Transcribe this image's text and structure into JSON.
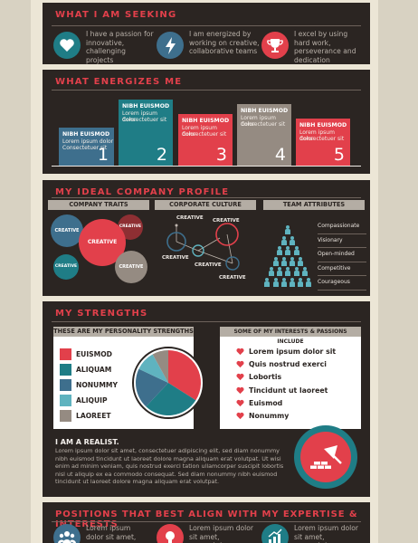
{
  "colors": {
    "red": "#e2404b",
    "teal": "#1f7d86",
    "blue": "#3e6f8d",
    "grey": "#958b82",
    "dark": "#2b2522"
  },
  "seeking": {
    "title": "WHAT I AM SEEKING",
    "items": [
      {
        "icon": "heart-icon",
        "text": "I have a passion for innovative, challenging projects"
      },
      {
        "icon": "lightning-icon",
        "text": "I am energized by working on creative, collaborative teams"
      },
      {
        "icon": "trophy-icon",
        "text": "I excel by using hard work, perseverance and dedication"
      }
    ]
  },
  "energizes": {
    "title": "WHAT ENERGIZES ME",
    "bars": [
      {
        "number": "1",
        "title": "NIBH EUISMOD",
        "line1": "Lorem ipsum dolor",
        "line2": "Consectetuer sit",
        "level": 0.4
      },
      {
        "number": "2",
        "title": "NIBH EUISMOD",
        "line1": "Lorem ipsum dolor",
        "line2": "Consectetuer sit",
        "level": 0.7
      },
      {
        "number": "3",
        "title": "NIBH EUISMOD",
        "line1": "Lorem ipsum dolor",
        "line2": "Consectetuer sit",
        "level": 0.55
      },
      {
        "number": "4",
        "title": "NIBH EUISMOD",
        "line1": "Lorem ipsum dolor",
        "line2": "Consectetuer sit",
        "level": 0.65
      },
      {
        "number": "5",
        "title": "NIBH EUISMOD",
        "line1": "Lorem ipsum dolor",
        "line2": "Consectetuer sit",
        "level": 0.5
      }
    ]
  },
  "company": {
    "title": "MY IDEAL COMPANY PROFILE",
    "traits_label": "COMPANY TRAITS",
    "culture_label": "CORPORATE CULTURE",
    "team_label": "TEAM ATTRIBUTES",
    "trait_word": "CREATIVE",
    "attributes": [
      "Compassionate",
      "Visionary",
      "Open-minded",
      "Competitive",
      "Courageous"
    ]
  },
  "strengths": {
    "title": "MY STRENGTHS",
    "personality_label": "THESE ARE MY PERSONALITY STRENGTHS",
    "legend": [
      {
        "label": "EUISMOD",
        "color": "#e2404b",
        "share": 0.34
      },
      {
        "label": "ALIQUAM",
        "color": "#1f7d86",
        "share": 0.28
      },
      {
        "label": "NONUMMY",
        "color": "#3e6f8d",
        "share": 0.2
      },
      {
        "label": "ALIQUIP",
        "color": "#5fb3bf",
        "share": 0.1
      },
      {
        "label": "LAOREET",
        "color": "#958b82",
        "share": 0.08
      }
    ],
    "interests_label": "SOME OF MY INTERESTS & PASSIONS INCLUDE",
    "interests": [
      "Lorem ipsum dolor sit",
      "Quis nostrud exerci",
      "Lobortis",
      "Tincidunt ut laoreet",
      "Euismod",
      "Nonummy"
    ],
    "realist_title": "I AM A REALIST.",
    "realist_text": "Lorem ipsum dolor sit amet, consectetuer adipiscing elit, sed diam nonummy nibh euismod tincidunt ut laoreet dolore magna aliquam erat volutpat. Ut wisi enim ad minim veniam, quis nostrud exerci tation ullamcorper suscipit lobortis nisl ut aliquip ex ea commodo consequat. Sed diam nonummy nibh euismod tincidunt ut laoreet dolore magna aliquam erat volutpat."
  },
  "positions": {
    "title": "POSITIONS THAT BEST ALIGN WITH MY EXPERTISE & INTERESTS",
    "items": [
      {
        "icon": "people-icon",
        "text": "Lorem ipsum dolor sit amet,"
      },
      {
        "icon": "lightbulb-icon",
        "text": "Lorem ipsum dolor sit amet, consectetuer"
      },
      {
        "icon": "growth-chart-icon",
        "text": "Lorem ipsum dolor sit amet, consectetuer"
      }
    ]
  }
}
